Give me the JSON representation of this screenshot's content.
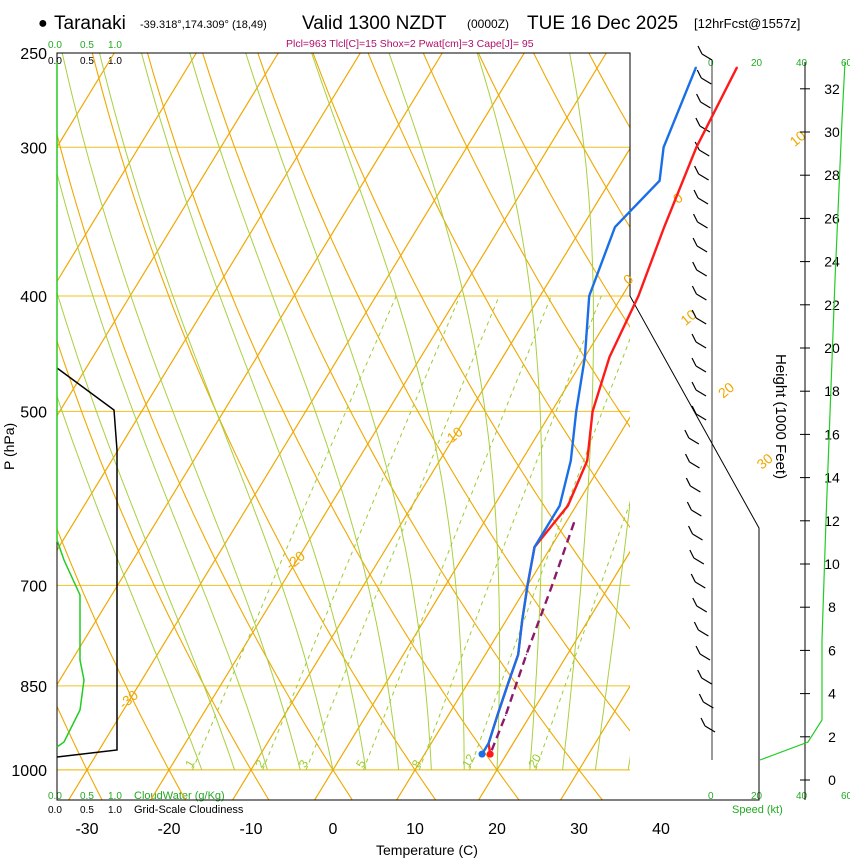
{
  "header": {
    "bullet": "●",
    "location": "Taranaki",
    "coords": "-39.318°,174.309° (18,49)",
    "valid_label": "Valid 1300 NZDT",
    "utc": "(0000Z)",
    "date": "TUE 16 Dec 2025",
    "forecast": "[12hrFcst@1557z]",
    "indices": "Plcl=963 Tlcl[C]=15 Shox=2 Pwat[cm]=3 Cape[J]= 95"
  },
  "colors": {
    "temperature": "#ff1a1a",
    "dewpoint": "#1a6fe8",
    "parcel": "#8b1a6b",
    "isotherm": "#f0a800",
    "isobar": "#f0c020",
    "mixing_ratio": "#9ccc30",
    "moist_adiabat": "#a8d040",
    "green_text": "#22aa22",
    "cloud_line": "#22cc22"
  },
  "chart_data": {
    "type": "skew-t",
    "title": "Taranaki Valid 1300 NZDT TUE 16 Dec 2025",
    "xlabel": "Temperature (C)",
    "ylabel": "P (hPa)",
    "right_ylabel": "Height (1000 Feet)",
    "x_ticks": [
      -30,
      -20,
      -10,
      0,
      10,
      20,
      30,
      40
    ],
    "p_ticks": [
      250,
      300,
      400,
      500,
      700,
      850,
      1000
    ],
    "height_ticks": [
      0,
      2,
      4,
      6,
      8,
      10,
      12,
      14,
      16,
      18,
      20,
      22,
      24,
      26,
      28,
      30,
      32
    ],
    "isotherm_labels": [
      {
        "label": "-30",
        "t": -30,
        "p": 890
      },
      {
        "label": "-20",
        "t": -20,
        "p": 680
      },
      {
        "label": "-10",
        "t": -10,
        "p": 535
      },
      {
        "label": "0",
        "t": 0,
        "p": 392
      },
      {
        "label": "10",
        "t": 10,
        "p": 300
      },
      {
        "label": "0",
        "t": 0,
        "p": 335
      },
      {
        "label": "10",
        "t": 10,
        "p": 424
      },
      {
        "label": "20",
        "t": 20,
        "p": 488
      },
      {
        "label": "30",
        "t": 30,
        "p": 560
      }
    ],
    "mixing_ratio_lines": [
      1,
      2,
      3,
      5,
      8,
      12,
      20
    ],
    "temperature": {
      "name": "Temperature",
      "points": [
        {
          "p": 257,
          "t": -3
        },
        {
          "p": 300,
          "t": -2
        },
        {
          "p": 350,
          "t": 0
        },
        {
          "p": 400,
          "t": 2
        },
        {
          "p": 450,
          "t": 3
        },
        {
          "p": 500,
          "t": 5
        },
        {
          "p": 550,
          "t": 8
        },
        {
          "p": 600,
          "t": 9
        },
        {
          "p": 650,
          "t": 8
        },
        {
          "p": 700,
          "t": 10
        },
        {
          "p": 750,
          "t": 12
        },
        {
          "p": 800,
          "t": 14
        },
        {
          "p": 850,
          "t": 15
        },
        {
          "p": 900,
          "t": 16
        },
        {
          "p": 950,
          "t": 17
        },
        {
          "p": 970,
          "t": 18
        }
      ]
    },
    "dewpoint": {
      "name": "Dewpoint",
      "points": [
        {
          "p": 257,
          "t": -8
        },
        {
          "p": 300,
          "t": -6
        },
        {
          "p": 320,
          "t": -4
        },
        {
          "p": 350,
          "t": -6
        },
        {
          "p": 400,
          "t": -4
        },
        {
          "p": 450,
          "t": 0
        },
        {
          "p": 500,
          "t": 3
        },
        {
          "p": 550,
          "t": 6
        },
        {
          "p": 600,
          "t": 8
        },
        {
          "p": 650,
          "t": 8
        },
        {
          "p": 700,
          "t": 10
        },
        {
          "p": 750,
          "t": 12
        },
        {
          "p": 800,
          "t": 14
        },
        {
          "p": 850,
          "t": 15
        },
        {
          "p": 900,
          "t": 16
        },
        {
          "p": 950,
          "t": 17
        },
        {
          "p": 970,
          "t": 17
        }
      ]
    },
    "parcel": {
      "name": "Parcel",
      "points": [
        {
          "p": 620,
          "t": 11
        },
        {
          "p": 700,
          "t": 13
        },
        {
          "p": 800,
          "t": 15
        },
        {
          "p": 900,
          "t": 17
        },
        {
          "p": 970,
          "t": 18
        }
      ]
    },
    "cloud_water_ticks": [
      "0.0",
      "0.5",
      "1.0"
    ],
    "cloudiness_ticks": [
      "0.0",
      "0.5",
      "1.0"
    ],
    "cloud_water_label": "CloudWater (g/Kg)",
    "cloudiness_label": "Grid-Scale Cloudiness",
    "speed_ticks": [
      "0",
      "20",
      "40",
      "60"
    ],
    "speed_label": "Speed (kt)"
  }
}
